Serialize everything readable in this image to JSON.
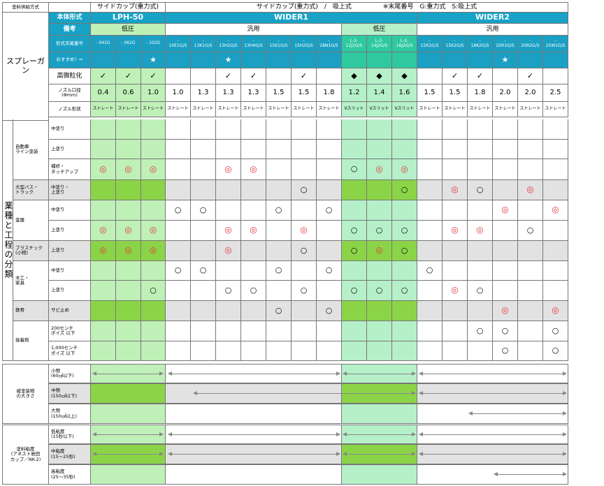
{
  "legend": {
    "supply_method_label": "塗料供給方式",
    "main_form_label": "本体形式",
    "remarks_label": "備考",
    "model_suffix_label": "形式末尾番号",
    "recommend_label": "おすすめ！⇒",
    "sprayer_label": "スプレーガン"
  },
  "supply": {
    "lph": "サイドカップ(重力式)",
    "wider": "サイドカップ(重力式)　/　吸上式",
    "note": "※末尾番号　G:重力式　S:吸上式"
  },
  "forms": {
    "lph": "LPH-50",
    "w1": "WIDER1",
    "w2": "WIDER2"
  },
  "remarks": {
    "low1": "低圧",
    "gen1": "汎用",
    "low2": "低圧",
    "gen2": "汎用"
  },
  "models": [
    "- 042G",
    "- 062G",
    "- 102G",
    "-\n10E1G/S",
    "-\n13K1G/S",
    "-\n13H2G/S",
    "-\n13H4G/S",
    "-\n15K1G/S",
    "-\n15H2G/S",
    "-\n18N1G/S",
    "L-2-\n12J2G/S",
    "L-2-\n14J2G/S",
    "L-2-\n16J2G/S",
    "-\n15K1G/S",
    "-\n15K2G/S",
    "-\n18K2G/S",
    "-\n20R1G/S",
    "-\n20R2G/S",
    "-\n25W1G/S"
  ],
  "recommend": [
    "",
    "",
    "★",
    "",
    "",
    "★",
    "",
    "",
    "",
    "",
    "",
    "",
    "",
    "",
    "",
    "",
    "★",
    "",
    ""
  ],
  "rows_head": {
    "fine": "高微粒化",
    "nozzle": "ノズル口径\n(Φmm)",
    "shape": "ノズル形状"
  },
  "fine": [
    "✓",
    "✓",
    "✓",
    "",
    "",
    "✓",
    "✓",
    "",
    "✓",
    "",
    "◆",
    "◆",
    "◆",
    "",
    "✓",
    "✓",
    "",
    "✓",
    ""
  ],
  "nozzle": [
    "0.4",
    "0.6",
    "1.0",
    "1.0",
    "1.3",
    "1.3",
    "1.3",
    "1.5",
    "1.5",
    "1.8",
    "1.2",
    "1.4",
    "1.6",
    "1.5",
    "1.5",
    "1.8",
    "2.0",
    "2.0",
    "2.5"
  ],
  "shape": [
    "ストレート",
    "ストレート",
    "ストレート",
    "ストレート",
    "ストレート",
    "ストレート",
    "ストレート",
    "ストレート",
    "ストレート",
    "ストレート",
    "Vスリット",
    "Vスリット",
    "Vスリット",
    "ストレート",
    "ストレート",
    "ストレート",
    "ストレート",
    "ストレート",
    "ストレート"
  ],
  "industry_label": "業種と工程の分類",
  "groups": {
    "auto": "自動車\nライン塗装",
    "bus": "大型バス・\nトラック",
    "metal": "金属",
    "plastic": "プラスチック\n(小物)",
    "wood": "木工・\n家具",
    "steel": "鉄骨",
    "adhesive": "接着剤"
  },
  "processes": [
    "中塗り",
    "上塗り",
    "補修・\nタッチアップ",
    "中塗り・\n上塗り",
    "中塗り",
    "上塗り",
    "上塗り",
    "中塗り",
    "上塗り",
    "サビ止め",
    "200センチ\nポイズ 以下",
    "1,000センチ\nポイズ 以下"
  ],
  "grid": [
    [
      "",
      "",
      "",
      "",
      "",
      "",
      "",
      "",
      "",
      "",
      "",
      "",
      "",
      "",
      "",
      "",
      "",
      "",
      ""
    ],
    [
      "",
      "",
      "",
      "",
      "",
      "",
      "",
      "",
      "",
      "",
      "",
      "",
      "",
      "",
      "",
      "",
      "",
      "",
      ""
    ],
    [
      "◎",
      "◎",
      "◎",
      "",
      "",
      "◎",
      "◎",
      "",
      "",
      "",
      "○",
      "◎",
      "◎",
      "",
      "",
      "",
      "",
      "",
      ""
    ],
    [
      "",
      "",
      "",
      "",
      "",
      "",
      "",
      "",
      "○",
      "",
      "",
      "",
      "○",
      "",
      "◎",
      "○",
      "",
      "◎",
      ""
    ],
    [
      "",
      "",
      "",
      "○",
      "○",
      "",
      "",
      "○",
      "",
      "○",
      "",
      "",
      "",
      "",
      "",
      "",
      "◎",
      "",
      "◎"
    ],
    [
      "◎",
      "◎",
      "◎",
      "",
      "",
      "◎",
      "◎",
      "",
      "◎",
      "",
      "○",
      "○",
      "○",
      "",
      "◎",
      "◎",
      "",
      "○",
      ""
    ],
    [
      "◎",
      "◎",
      "◎",
      "",
      "",
      "◎",
      "",
      "",
      "○",
      "",
      "○",
      "◎",
      "○",
      "",
      "",
      "",
      "",
      "",
      ""
    ],
    [
      "",
      "",
      "",
      "○",
      "○",
      "",
      "",
      "○",
      "",
      "○",
      "",
      "",
      "",
      "○",
      "",
      "",
      "",
      "",
      ""
    ],
    [
      "",
      "",
      "○",
      "",
      "",
      "○",
      "○",
      "",
      "○",
      "",
      "○",
      "○",
      "○",
      "",
      "◎",
      "○",
      "",
      "",
      ""
    ],
    [
      "",
      "",
      "",
      "",
      "",
      "",
      "",
      "○",
      "",
      "○",
      "",
      "",
      "",
      "",
      "",
      "",
      "◎",
      "",
      "◎"
    ],
    [
      "",
      "",
      "",
      "",
      "",
      "",
      "",
      "",
      "",
      "",
      "",
      "",
      "",
      "",
      "",
      "○",
      "○",
      "",
      "○"
    ],
    [
      "",
      "",
      "",
      "",
      "",
      "",
      "",
      "",
      "",
      "",
      "",
      "",
      "",
      "",
      "",
      "",
      "○",
      "",
      "○"
    ]
  ],
  "size": {
    "label": "被塗装物\nの大きさ",
    "rows": [
      "小物\n(60㎠以下)",
      "中物\n(150㎠以下)",
      "大物\n(150㎠以上)"
    ]
  },
  "visc": {
    "label": "塗料粘度\n(アネスト岩田\nカップ／NK-2)",
    "rows": [
      "低粘度\n(15秒以下)",
      "中粘度\n(15～25秒)",
      "高粘度\n(25～35秒)"
    ]
  }
}
